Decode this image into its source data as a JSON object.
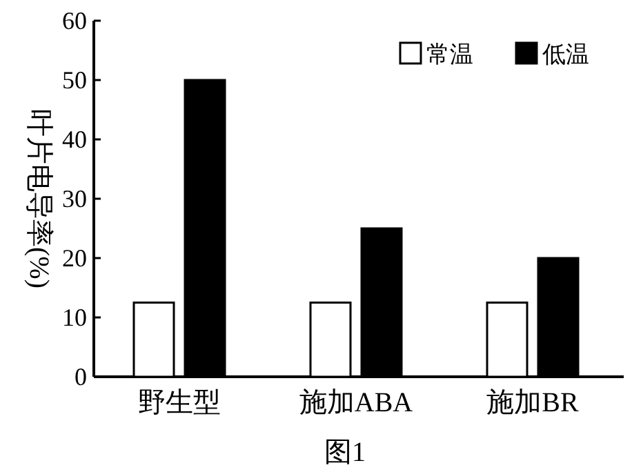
{
  "chart_data": {
    "type": "bar",
    "title": "图1",
    "ylabel": "叶片电导率(%)",
    "categories": [
      "野生型",
      "施加ABA",
      "施加BR"
    ],
    "series": [
      {
        "name": "常温",
        "color": "#ffffff",
        "values": [
          12.5,
          12.5,
          12.5
        ]
      },
      {
        "name": "低温",
        "color": "#000000",
        "values": [
          50,
          25,
          20
        ]
      }
    ],
    "ylim": [
      0,
      60
    ],
    "yticks": [
      0,
      10,
      20,
      30,
      40,
      50,
      60
    ],
    "legend": "top right",
    "grid": false
  }
}
